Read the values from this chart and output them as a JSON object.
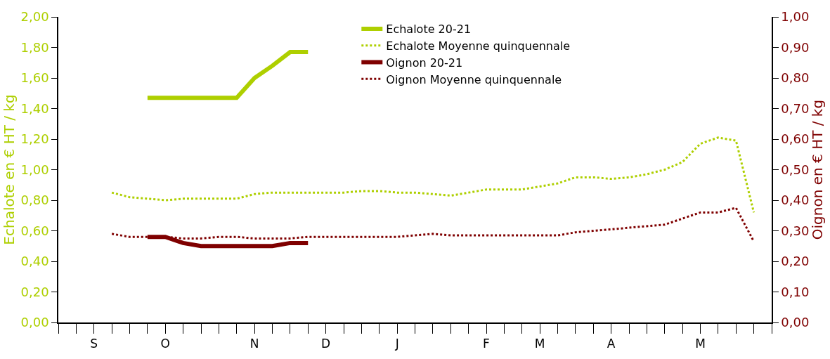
{
  "chart_data": {
    "type": "line",
    "ylabel": "Echalote en € HT / kg",
    "y2label": "Oignon en € HT / kg",
    "categories": [
      null,
      null,
      "S",
      null,
      null,
      null,
      "O",
      null,
      null,
      null,
      null,
      "N",
      null,
      null,
      null,
      "D",
      null,
      null,
      null,
      "J",
      null,
      null,
      null,
      null,
      "F",
      null,
      null,
      "M",
      null,
      null,
      null,
      "A",
      null,
      null,
      null,
      null,
      "M",
      null,
      null,
      null,
      null
    ],
    "ylim": [
      0,
      2
    ],
    "yticks": [
      {
        "value": 0,
        "label": "0,00"
      },
      {
        "value": 0.2,
        "label": "0,20"
      },
      {
        "value": 0.4,
        "label": "0,40"
      },
      {
        "value": 0.6,
        "label": "0,60"
      },
      {
        "value": 0.8,
        "label": "0,80"
      },
      {
        "value": 1,
        "label": "1,00"
      },
      {
        "value": 1.2,
        "label": "1,20"
      },
      {
        "value": 1.4,
        "label": "1,40"
      },
      {
        "value": 1.6,
        "label": "1,60"
      },
      {
        "value": 1.8,
        "label": "1,80"
      },
      {
        "value": 2,
        "label": "2,00"
      }
    ],
    "y2lim": [
      0,
      1
    ],
    "y2ticks": [
      {
        "value": 0,
        "label": "0,00"
      },
      {
        "value": 0.1,
        "label": "0,10"
      },
      {
        "value": 0.2,
        "label": "0,20"
      },
      {
        "value": 0.3,
        "label": "0,30"
      },
      {
        "value": 0.4,
        "label": "0,40"
      },
      {
        "value": 0.5,
        "label": "0,50"
      },
      {
        "value": 0.6,
        "label": "0,60"
      },
      {
        "value": 0.7,
        "label": "0,70"
      },
      {
        "value": 0.8,
        "label": "0,80"
      },
      {
        "value": 0.9,
        "label": "0,90"
      },
      {
        "value": 1,
        "label": "1,00"
      }
    ],
    "grid": false,
    "legend": "top",
    "marker": "none",
    "series": [
      {
        "name": "Echalote 20-21",
        "color": "#aecf00",
        "line_style": "solid",
        "values": [
          null,
          null,
          null,
          null,
          null,
          1.47,
          1.47,
          1.47,
          1.47,
          1.47,
          1.47,
          1.6,
          1.68,
          1.77,
          1.77,
          null,
          null,
          null,
          null,
          null,
          null,
          null,
          null,
          null,
          null,
          null,
          null,
          null,
          null,
          null,
          null,
          null,
          null,
          null,
          null,
          null,
          null,
          null,
          null,
          null,
          null
        ]
      },
      {
        "name": "Echalote Moyenne quinquennale",
        "color": "#aecf00",
        "line_style": "dotted",
        "values": [
          null,
          null,
          null,
          0.85,
          0.82,
          0.81,
          0.8,
          0.81,
          0.81,
          0.81,
          0.81,
          0.84,
          0.85,
          0.85,
          0.85,
          0.85,
          0.85,
          0.86,
          0.86,
          0.85,
          0.85,
          0.84,
          0.83,
          0.85,
          0.87,
          0.87,
          0.87,
          0.89,
          0.91,
          0.95,
          0.95,
          0.94,
          0.95,
          0.97,
          1.0,
          1.05,
          1.17,
          1.21,
          1.19,
          0.72,
          null
        ]
      },
      {
        "name": "Oignon 20-21",
        "color": "#7f0000",
        "line_style": "solid",
        "axis": "y2",
        "values": [
          null,
          null,
          null,
          null,
          null,
          0.28,
          0.28,
          0.26,
          0.25,
          0.25,
          0.25,
          0.25,
          0.25,
          0.26,
          0.26,
          null,
          null,
          null,
          null,
          null,
          null,
          null,
          null,
          null,
          null,
          null,
          null,
          null,
          null,
          null,
          null,
          null,
          null,
          null,
          null,
          null,
          null,
          null,
          null,
          null,
          null
        ]
      },
      {
        "name": "Oignon Moyenne quinquennale",
        "color": "#7f0000",
        "line_style": "dotted",
        "axis": "y2",
        "values": [
          null,
          null,
          null,
          0.29,
          0.28,
          0.28,
          0.28,
          0.275,
          0.275,
          0.28,
          0.28,
          0.275,
          0.275,
          0.275,
          0.28,
          0.28,
          0.28,
          0.28,
          0.28,
          0.28,
          0.285,
          0.29,
          0.285,
          0.285,
          0.285,
          0.285,
          0.285,
          0.285,
          0.285,
          0.295,
          0.3,
          0.305,
          0.31,
          0.315,
          0.32,
          0.34,
          0.36,
          0.36,
          0.375,
          0.265,
          null
        ]
      }
    ]
  }
}
